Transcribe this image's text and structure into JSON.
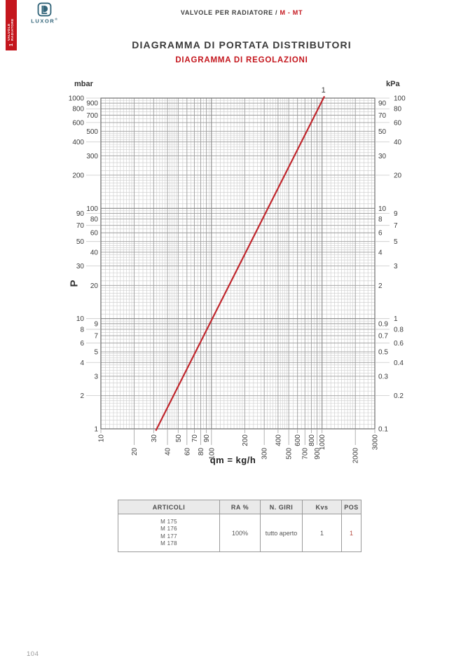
{
  "page": {
    "number": "104"
  },
  "sidebar_tab": {
    "section_number": "1",
    "label": "VALVOLE RADIATORE"
  },
  "logo": {
    "text": "LUXOR",
    "registered": "®"
  },
  "header": {
    "breadcrumb": "VALVOLE PER RADIATORE / ",
    "highlight": "M - MT"
  },
  "titles": {
    "main": "DIAGRAMMA DI PORTATA DISTRIBUTORI",
    "sub": "DIAGRAMMA DI REGOLAZIONI"
  },
  "colors": {
    "accent": "#c4161d",
    "logo_teal": "#33657a",
    "pos_red": "#b5483d",
    "line_red": "#c0272d",
    "grid_minor": "#cacaca",
    "grid_major": "#9b9b9b",
    "grid_decade": "#868686",
    "plot_border": "#6f6f6f",
    "leader": "#c9c9c9"
  },
  "chart_data": {
    "type": "line",
    "title": "",
    "grid": "log-log",
    "x_axis": {
      "label": "qm = kg/h",
      "scale": "log",
      "min": 10,
      "max": 3000,
      "ticks": [
        10,
        20,
        30,
        40,
        50,
        60,
        70,
        80,
        90,
        100,
        200,
        300,
        400,
        500,
        600,
        700,
        800,
        900,
        1000,
        2000,
        3000
      ]
    },
    "y_axis_left": {
      "label": "P",
      "unit": "mbar",
      "scale": "log",
      "min": 1,
      "max": 1000,
      "ticks": [
        1000,
        900,
        800,
        700,
        600,
        500,
        400,
        300,
        200,
        100,
        90,
        80,
        70,
        60,
        50,
        40,
        30,
        20,
        10,
        9,
        8,
        7,
        6,
        5,
        4,
        3,
        2,
        1
      ]
    },
    "y_axis_right": {
      "unit": "kPa",
      "scale": "log",
      "min": 0.1,
      "max": 100,
      "ticks": [
        100,
        90,
        80,
        70,
        60,
        50,
        40,
        30,
        20,
        10,
        9,
        8,
        7,
        6,
        5,
        4,
        3,
        2,
        1,
        0.9,
        0.8,
        0.7,
        0.6,
        0.5,
        0.4,
        0.3,
        0.2,
        0.1
      ]
    },
    "series": [
      {
        "name": "1",
        "color": "#c0272d",
        "points": [
          {
            "x": 32,
            "y": 1
          },
          {
            "x": 1030,
            "y": 1000
          }
        ]
      }
    ]
  },
  "table": {
    "headers": [
      "ARTICOLI",
      "RA %",
      "N. GIRI",
      "Kvs",
      "POS"
    ],
    "rows": [
      {
        "articoli": [
          "M 175",
          "M 176",
          "M 177",
          "M 178"
        ],
        "ra": "100%",
        "giri": "tutto aperto",
        "kvs": "1",
        "pos": "1"
      }
    ]
  }
}
